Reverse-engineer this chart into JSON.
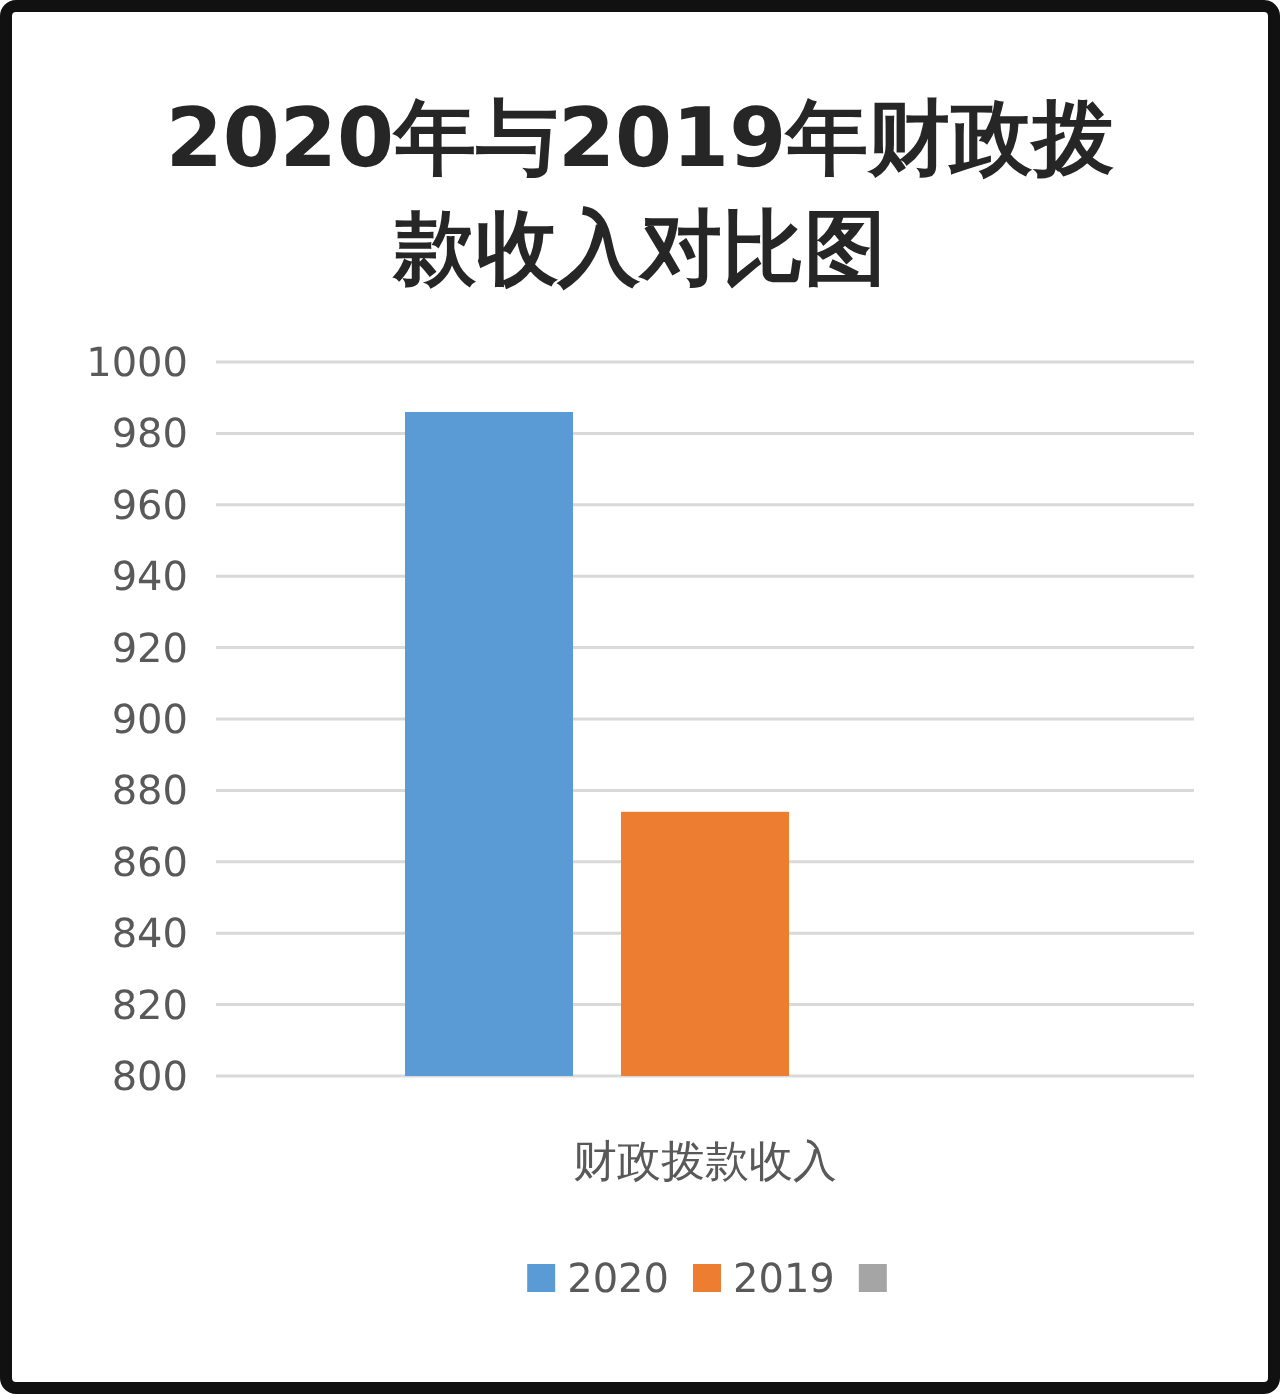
{
  "chart_data": {
    "type": "bar",
    "title": "2020年与2019年财政拨款收入对比图",
    "categories": [
      "财政拨款收入"
    ],
    "series": [
      {
        "name": "2020",
        "color": "#5b9bd5",
        "values": [
          986
        ]
      },
      {
        "name": "2019",
        "color": "#ed7d31",
        "values": [
          874
        ]
      },
      {
        "color": "#a5a5a5",
        "values": [
          null
        ]
      }
    ],
    "ylim": [
      800,
      1000
    ],
    "yticks": [
      800,
      820,
      840,
      860,
      880,
      900,
      920,
      940,
      960,
      980,
      1000
    ],
    "grid": "y",
    "legend": "bottom"
  }
}
